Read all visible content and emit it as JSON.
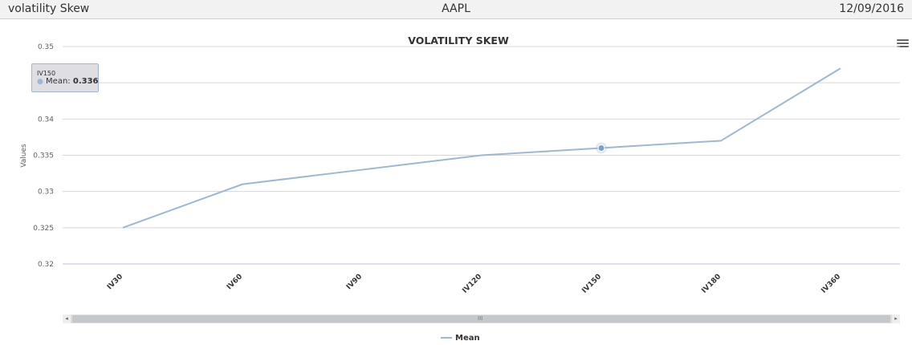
{
  "header": {
    "title": "volatility Skew",
    "symbol": "AAPL",
    "date": "12/09/2016"
  },
  "icons": {
    "menu": "hamburger-menu-icon"
  },
  "colors": {
    "series": "#9cb8d4",
    "grid": "#d8d8d8",
    "axis": "#c0c0d8"
  },
  "chart_data": {
    "type": "line",
    "title": "VOLATILITY SKEW",
    "xlabel": "",
    "ylabel": "Values",
    "categories": [
      "IV30",
      "IV60",
      "IV90",
      "IV120",
      "IV150",
      "IV180",
      "IV360"
    ],
    "series": [
      {
        "name": "Mean",
        "values": [
          0.325,
          0.331,
          0.333,
          0.335,
          0.336,
          0.337,
          0.347
        ]
      }
    ],
    "yticks": [
      0.32,
      0.325,
      0.33,
      0.335,
      0.34,
      0.345,
      0.35
    ],
    "ytick_labels": [
      "0.32",
      "0.325",
      "0.33",
      "0.335",
      "0.34",
      "",
      "0.35"
    ],
    "ylim": [
      0.32,
      0.35
    ],
    "grid": true,
    "legend": "bottom-center",
    "highlighted_index": 4
  },
  "tooltip": {
    "category": "IV150",
    "series": "Mean",
    "value": "0.336"
  },
  "scrollbar": {
    "left_arrow": "◂",
    "right_arrow": "▸",
    "grip": "III"
  }
}
